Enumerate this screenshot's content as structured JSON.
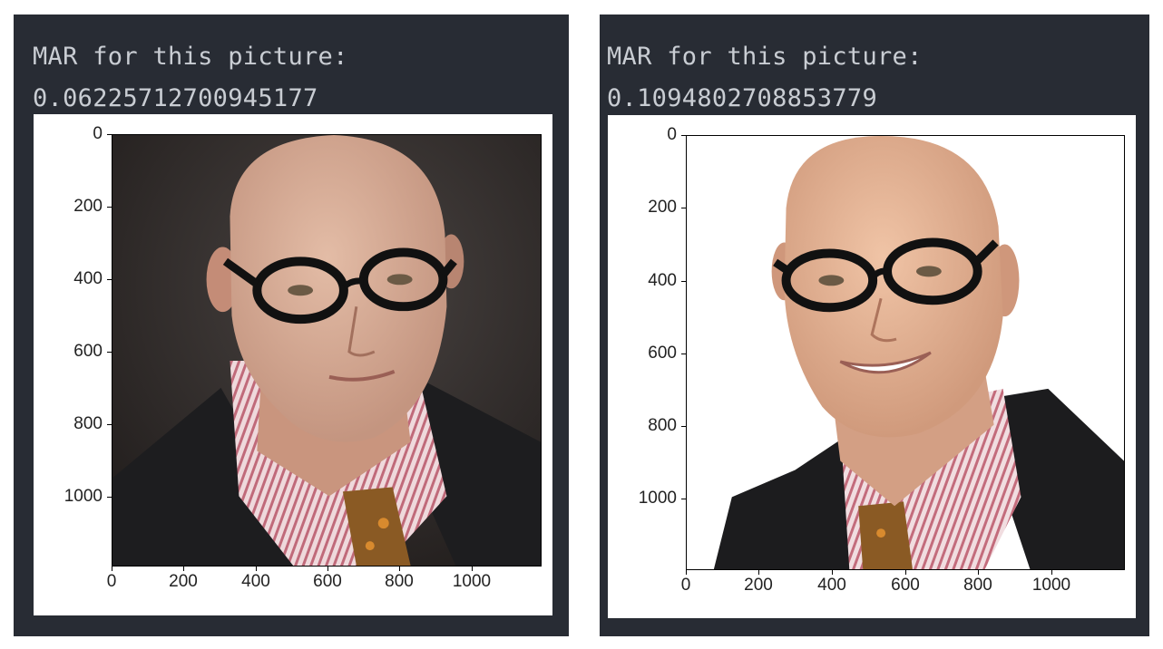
{
  "cells": [
    {
      "label": "MAR for this picture:",
      "value": "0.06225712700945177",
      "plot": {
        "y_ticks": [
          "0",
          "200",
          "400",
          "600",
          "800",
          "1000"
        ],
        "x_ticks": [
          "0",
          "200",
          "400",
          "600",
          "800",
          "1000"
        ],
        "image_extent": [
          1200,
          1200
        ],
        "background": "#2a2624",
        "subject": "bald-man-glasses-suit-neutral-expression"
      }
    },
    {
      "label": "MAR for this picture:",
      "value": "0.1094802708853779",
      "plot": {
        "y_ticks": [
          "0",
          "200",
          "400",
          "600",
          "800",
          "1000"
        ],
        "x_ticks": [
          "0",
          "200",
          "400",
          "600",
          "800",
          "1000"
        ],
        "image_extent": [
          1200,
          1200
        ],
        "background": "#ffffff",
        "subject": "bald-man-glasses-suit-smiling"
      }
    }
  ],
  "colors": {
    "cell_bg": "#282c34",
    "text": "#c9cdd3",
    "plot_bg": "#ffffff"
  }
}
